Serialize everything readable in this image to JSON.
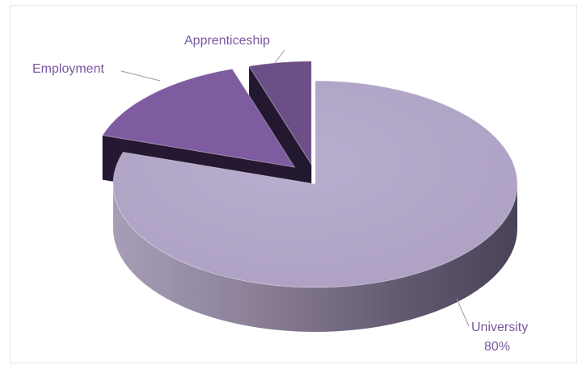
{
  "chart_data": {
    "type": "pie",
    "style": "3d-exploded",
    "categories": [
      "University",
      "Employment",
      "Apprenticeship"
    ],
    "values": [
      80,
      15,
      5
    ],
    "data_labels": {
      "University": "80%"
    },
    "legend": "none",
    "grid": false
  },
  "colors": {
    "University": {
      "top": "#b4a6c9",
      "side_light": "#a69bb6",
      "side_dark": "#4f4760"
    },
    "Employment": {
      "top": "#7e5c9f",
      "side_light": "#3d2a52",
      "side_dark": "#241832"
    },
    "Apprenticeship": {
      "top": "#6c4f86",
      "side_light": "#3a2a4b",
      "side_dark": "#221830"
    },
    "label_text": "#7a57a0",
    "leader_line": "#9a9aa4"
  }
}
